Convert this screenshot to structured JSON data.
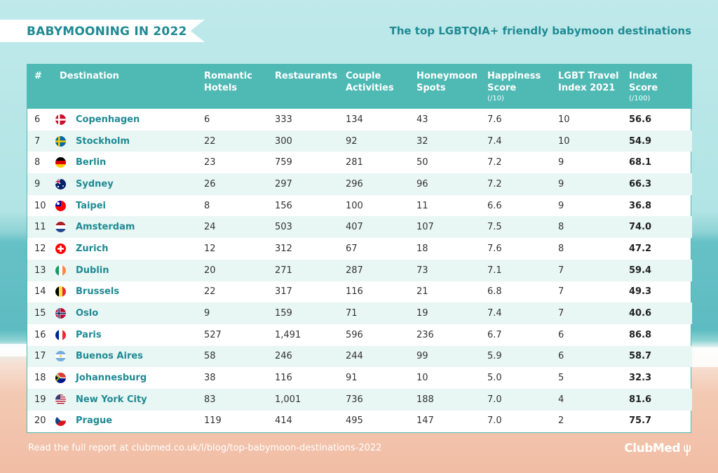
{
  "header": {
    "title": "BABYMOONING IN 2022",
    "subtitle": "The top LGBTQIA+ friendly babymoon destinations"
  },
  "chart_data": {
    "type": "table",
    "columns": [
      {
        "label": "#",
        "unit": ""
      },
      {
        "label": "Destination",
        "unit": ""
      },
      {
        "label": "Romantic Hotels",
        "unit": ""
      },
      {
        "label": "Restaurants",
        "unit": ""
      },
      {
        "label": "Couple Activities",
        "unit": ""
      },
      {
        "label": "Honeymoon Spots",
        "unit": ""
      },
      {
        "label": "Happiness Score",
        "unit": "(/10)"
      },
      {
        "label": "LGBT Travel Index 2021",
        "unit": ""
      },
      {
        "label": "Index Score",
        "unit": "(/100)"
      }
    ],
    "rows": [
      {
        "rank": "6",
        "destination": "Copenhagen",
        "flag": "denmark-flag",
        "hotels": "6",
        "restaurants": "333",
        "activities": "134",
        "spots": "43",
        "happiness": "7.6",
        "lgbt": "10",
        "index": "56.6"
      },
      {
        "rank": "7",
        "destination": "Stockholm",
        "flag": "sweden-flag",
        "hotels": "22",
        "restaurants": "300",
        "activities": "92",
        "spots": "32",
        "happiness": "7.4",
        "lgbt": "10",
        "index": "54.9"
      },
      {
        "rank": "8",
        "destination": "Berlin",
        "flag": "germany-flag",
        "hotels": "23",
        "restaurants": "759",
        "activities": "281",
        "spots": "50",
        "happiness": "7.2",
        "lgbt": "9",
        "index": "68.1"
      },
      {
        "rank": "9",
        "destination": "Sydney",
        "flag": "australia-flag",
        "hotels": "26",
        "restaurants": "297",
        "activities": "296",
        "spots": "96",
        "happiness": "7.2",
        "lgbt": "9",
        "index": "66.3"
      },
      {
        "rank": "10",
        "destination": "Taipei",
        "flag": "taiwan-flag",
        "hotels": "8",
        "restaurants": "156",
        "activities": "100",
        "spots": "11",
        "happiness": "6.6",
        "lgbt": "9",
        "index": "36.8"
      },
      {
        "rank": "11",
        "destination": "Amsterdam",
        "flag": "netherlands-flag",
        "hotels": "24",
        "restaurants": "503",
        "activities": "407",
        "spots": "107",
        "happiness": "7.5",
        "lgbt": "8",
        "index": "74.0"
      },
      {
        "rank": "12",
        "destination": "Zurich",
        "flag": "switzerland-flag",
        "hotels": "12",
        "restaurants": "312",
        "activities": "67",
        "spots": "18",
        "happiness": "7.6",
        "lgbt": "8",
        "index": "47.2"
      },
      {
        "rank": "13",
        "destination": "Dublin",
        "flag": "ireland-flag",
        "hotels": "20",
        "restaurants": "271",
        "activities": "287",
        "spots": "73",
        "happiness": "7.1",
        "lgbt": "7",
        "index": "59.4"
      },
      {
        "rank": "14",
        "destination": "Brussels",
        "flag": "belgium-flag",
        "hotels": "22",
        "restaurants": "317",
        "activities": "116",
        "spots": "21",
        "happiness": "6.8",
        "lgbt": "7",
        "index": "49.3"
      },
      {
        "rank": "15",
        "destination": "Oslo",
        "flag": "norway-flag",
        "hotels": "9",
        "restaurants": "159",
        "activities": "71",
        "spots": "19",
        "happiness": "7.4",
        "lgbt": "7",
        "index": "40.6"
      },
      {
        "rank": "16",
        "destination": "Paris",
        "flag": "france-flag",
        "hotels": "527",
        "restaurants": "1,491",
        "activities": "596",
        "spots": "236",
        "happiness": "6.7",
        "lgbt": "6",
        "index": "86.8"
      },
      {
        "rank": "17",
        "destination": "Buenos Aires",
        "flag": "argentina-flag",
        "hotels": "58",
        "restaurants": "246",
        "activities": "244",
        "spots": "99",
        "happiness": "5.9",
        "lgbt": "6",
        "index": "58.7"
      },
      {
        "rank": "18",
        "destination": "Johannesburg",
        "flag": "south-africa-flag",
        "hotels": "38",
        "restaurants": "116",
        "activities": "91",
        "spots": "10",
        "happiness": "5.0",
        "lgbt": "5",
        "index": "32.3"
      },
      {
        "rank": "19",
        "destination": "New York City",
        "flag": "usa-flag",
        "hotels": "83",
        "restaurants": "1,001",
        "activities": "736",
        "spots": "188",
        "happiness": "7.0",
        "lgbt": "4",
        "index": "81.6"
      },
      {
        "rank": "20",
        "destination": "Prague",
        "flag": "czech-flag",
        "hotels": "119",
        "restaurants": "414",
        "activities": "495",
        "spots": "147",
        "happiness": "7.0",
        "lgbt": "2",
        "index": "75.7"
      }
    ]
  },
  "footer": {
    "text": "Read the full report at clubmed.co.uk/l/blog/top-babymoon-destinations-2022",
    "logo": "ClubMed"
  },
  "colors": {
    "accent": "#1f8a93",
    "header_bg": "#4fb9b4",
    "stripe": "#e8f6f4"
  }
}
